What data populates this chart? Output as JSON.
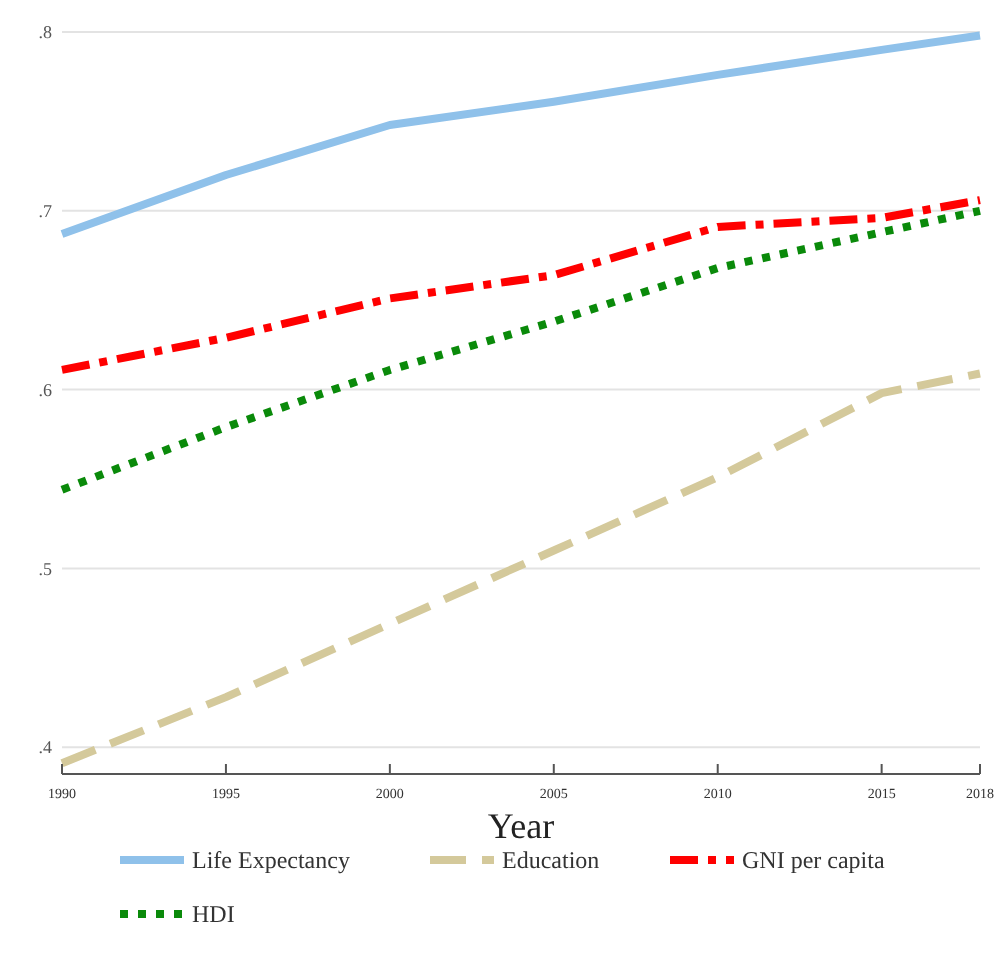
{
  "chart_data": {
    "type": "line",
    "xlabel": "Year",
    "x": [
      1990,
      1995,
      2000,
      2005,
      2010,
      2015,
      2018
    ],
    "xlim": [
      1990,
      2018
    ],
    "xticks": [
      1990,
      1995,
      2000,
      2005,
      2010,
      2015,
      2018
    ],
    "ylim": [
      0.385,
      0.8
    ],
    "yticks": [
      {
        "value": 0.4,
        "label": ".4"
      },
      {
        "value": 0.5,
        "label": ".5"
      },
      {
        "value": 0.6,
        "label": ".6"
      },
      {
        "value": 0.7,
        "label": ".7"
      },
      {
        "value": 0.8,
        "label": ".8"
      }
    ],
    "grid": "y",
    "legend": "bottom",
    "marker": "none",
    "series": [
      {
        "name": "Life Expectancy",
        "color": "#8fc1ea",
        "line_style": "solid",
        "values": [
          0.687,
          0.72,
          0.748,
          0.761,
          0.776,
          0.79,
          0.798
        ]
      },
      {
        "name": "Education",
        "color": "#d4c99b",
        "line_style": "dashed",
        "values": [
          0.391,
          0.428,
          0.469,
          0.51,
          0.551,
          0.598,
          0.609
        ]
      },
      {
        "name": "GNI per capita",
        "color": "#ff0000",
        "line_style": "dashdot",
        "values": [
          0.611,
          0.629,
          0.651,
          0.664,
          0.691,
          0.696,
          0.706
        ]
      },
      {
        "name": "HDI",
        "color": "#0a8a0a",
        "line_style": "dotted",
        "values": [
          0.544,
          0.579,
          0.611,
          0.638,
          0.668,
          0.688,
          0.7
        ]
      }
    ]
  }
}
